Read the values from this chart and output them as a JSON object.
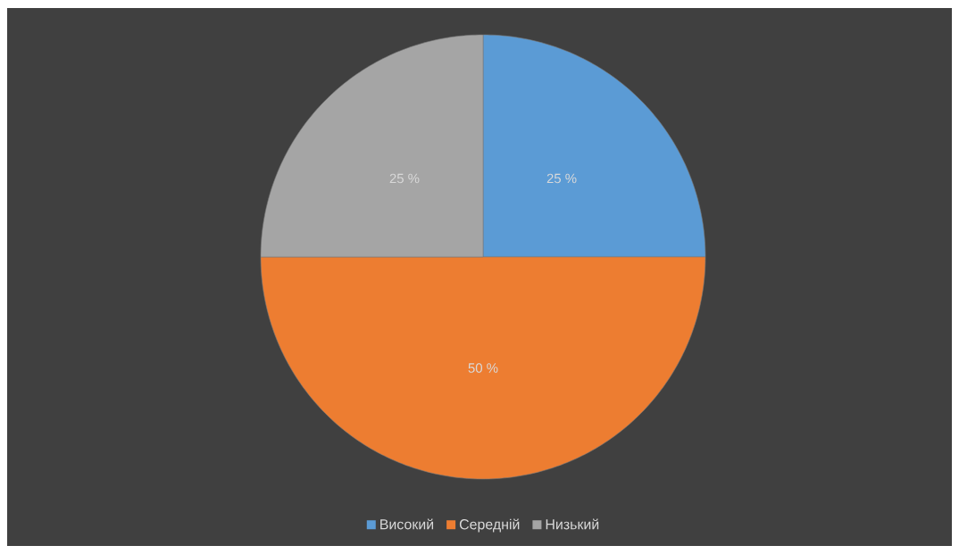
{
  "chart_data": {
    "type": "pie",
    "categories": [
      "Високий",
      "Середній",
      "Низький"
    ],
    "values": [
      25,
      50,
      25
    ],
    "colors": [
      "#5b9bd5",
      "#ed7d31",
      "#a5a5a5"
    ],
    "value_labels": [
      "25 %",
      "50 %",
      "25 %"
    ],
    "legend": "bottom"
  }
}
